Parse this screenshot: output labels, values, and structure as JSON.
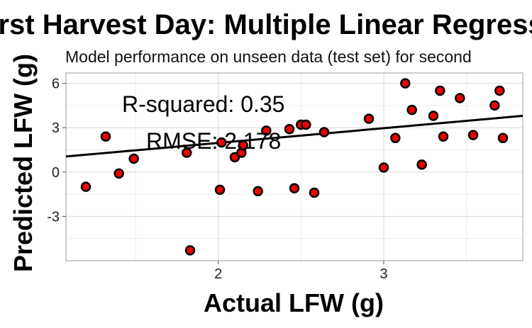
{
  "chart_data": {
    "type": "scatter",
    "title": "First Harvest Day: Multiple Linear Regression",
    "subtitle": "Model performance on unseen data (test  set) for second",
    "xlabel": "Actual LFW (g)",
    "ylabel": "Predicted LFW (g)",
    "xlim": [
      1.08,
      3.84
    ],
    "ylim": [
      -6.0,
      6.7
    ],
    "x_ticks": [
      2,
      3
    ],
    "x_tick_labels": [
      "2",
      "3"
    ],
    "y_ticks": [
      -3,
      0,
      3,
      6
    ],
    "y_tick_labels": [
      "-3",
      "0",
      "3",
      "6"
    ],
    "grid": true,
    "point_color": "#ee0000",
    "regression_line": {
      "x": [
        1.08,
        3.84
      ],
      "y": [
        1.05,
        3.8
      ]
    },
    "annotations": [
      {
        "text": "R-squared:  0.35"
      },
      {
        "text": "RMSE: 2.178"
      }
    ],
    "points": {
      "x": [
        1.2,
        1.32,
        1.4,
        1.49,
        1.81,
        1.83,
        2.01,
        2.02,
        2.1,
        2.14,
        2.15,
        2.24,
        2.29,
        2.43,
        2.46,
        2.5,
        2.53,
        2.58,
        2.64,
        2.91,
        3.0,
        3.07,
        3.13,
        3.17,
        3.23,
        3.3,
        3.34,
        3.36,
        3.46,
        3.54,
        3.67,
        3.7,
        3.72
      ],
      "y": [
        -1.0,
        2.4,
        -0.1,
        0.9,
        1.3,
        -5.3,
        -1.2,
        2.0,
        1.0,
        1.3,
        1.8,
        -1.3,
        2.8,
        2.9,
        -1.1,
        3.2,
        3.2,
        -1.4,
        2.7,
        3.6,
        0.3,
        2.3,
        6.0,
        4.2,
        0.5,
        3.8,
        5.5,
        2.4,
        5.0,
        2.5,
        4.5,
        5.5,
        2.3
      ]
    }
  }
}
